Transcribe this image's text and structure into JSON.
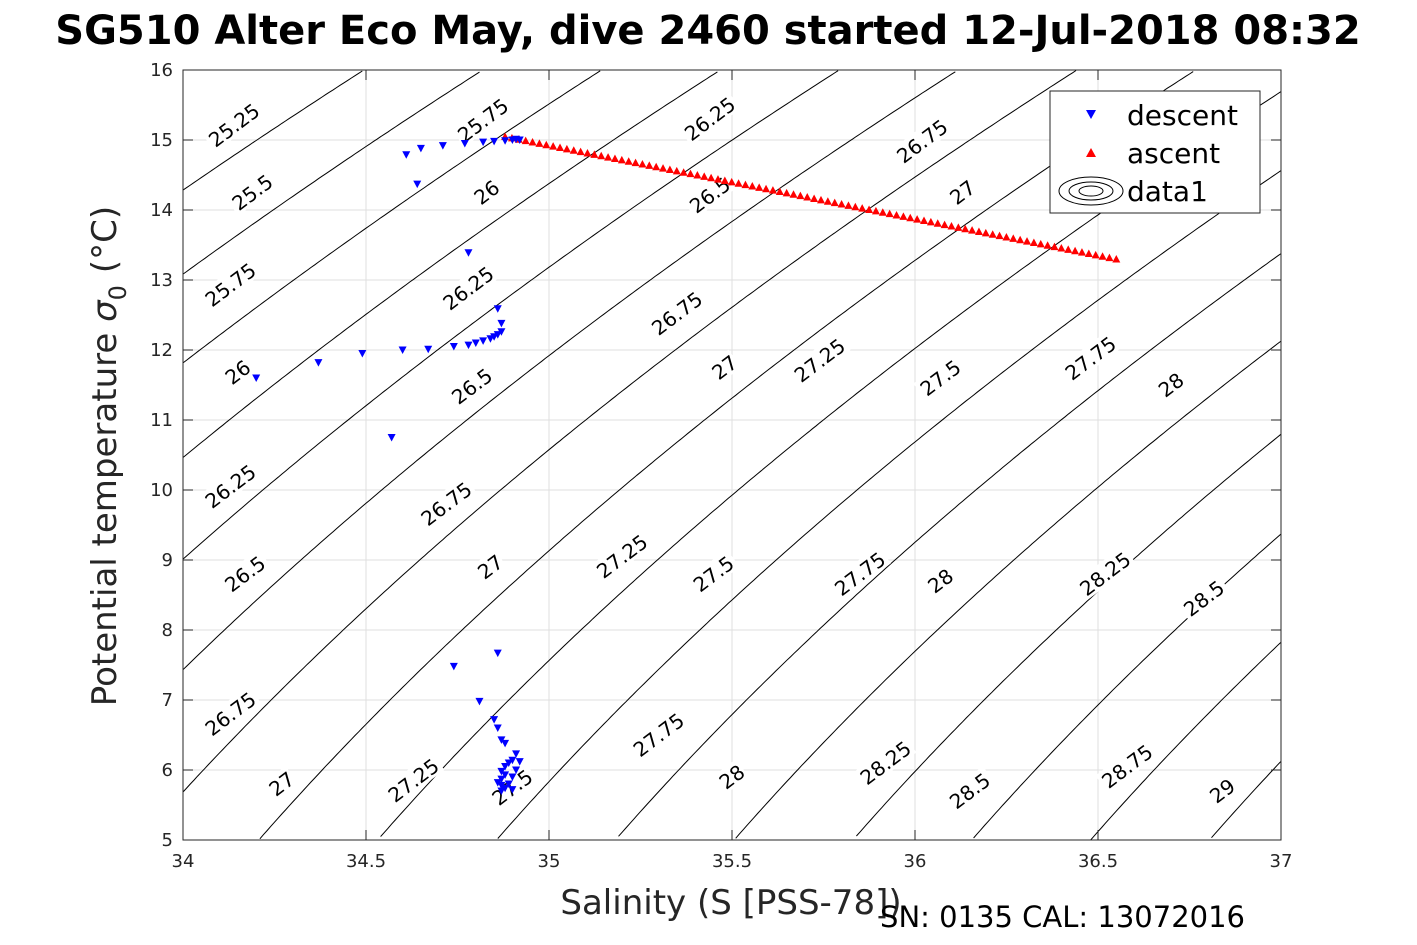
{
  "title": "SG510 Alter Eco May, dive 2460 started 12-Jul-2018 08:32",
  "footer": "SN: 0135  CAL: 13072016",
  "chart_data": {
    "type": "scatter",
    "xlabel": "Salinity (S [PSS-78])",
    "ylabel": "Potential temperature",
    "ylabel_symbol": "σ",
    "ylabel_subscript": "0",
    "ylabel_unit": "(°C)",
    "xlim": [
      34,
      37
    ],
    "ylim": [
      5,
      16
    ],
    "xticks": [
      34,
      34.5,
      35,
      35.5,
      36,
      36.5,
      37
    ],
    "yticks": [
      5,
      6,
      7,
      8,
      9,
      10,
      11,
      12,
      13,
      14,
      15,
      16
    ],
    "grid": true,
    "legend": {
      "placement": "top-right",
      "entries": [
        {
          "label": "descent",
          "color": "#0000ff",
          "marker": "triangle-down"
        },
        {
          "label": "ascent",
          "color": "#ff0000",
          "marker": "triangle-up"
        },
        {
          "label": "data1",
          "color": "#000000",
          "marker": "contour"
        }
      ]
    },
    "series": [
      {
        "name": "descent",
        "color": "#0000ff",
        "marker": "triangle-down",
        "points": [
          [
            34.2,
            11.6
          ],
          [
            34.37,
            11.82
          ],
          [
            34.49,
            11.95
          ],
          [
            34.6,
            12.0
          ],
          [
            34.67,
            12.01
          ],
          [
            34.74,
            12.05
          ],
          [
            34.78,
            12.07
          ],
          [
            34.8,
            12.1
          ],
          [
            34.82,
            12.13
          ],
          [
            34.84,
            12.16
          ],
          [
            34.85,
            12.19
          ],
          [
            34.86,
            12.22
          ],
          [
            34.87,
            12.26
          ],
          [
            34.87,
            12.38
          ],
          [
            34.86,
            12.59
          ],
          [
            34.78,
            13.39
          ],
          [
            34.57,
            10.75
          ],
          [
            34.64,
            14.37
          ],
          [
            34.61,
            14.79
          ],
          [
            34.65,
            14.88
          ],
          [
            34.71,
            14.92
          ],
          [
            34.77,
            14.95
          ],
          [
            34.82,
            14.97
          ],
          [
            34.85,
            14.98
          ],
          [
            34.88,
            14.99
          ],
          [
            34.9,
            15.0
          ],
          [
            34.91,
            15.01
          ],
          [
            34.92,
            15.0
          ],
          [
            34.74,
            7.48
          ],
          [
            34.86,
            7.67
          ],
          [
            34.81,
            6.98
          ],
          [
            34.85,
            6.72
          ],
          [
            34.86,
            6.6
          ],
          [
            34.87,
            6.43
          ],
          [
            34.88,
            6.38
          ],
          [
            34.91,
            6.23
          ],
          [
            34.9,
            6.14
          ],
          [
            34.89,
            6.1
          ],
          [
            34.88,
            6.05
          ],
          [
            34.87,
            5.98
          ],
          [
            34.88,
            5.93
          ],
          [
            34.87,
            5.87
          ],
          [
            34.86,
            5.82
          ],
          [
            34.87,
            5.78
          ],
          [
            34.88,
            5.74
          ],
          [
            34.87,
            5.7
          ],
          [
            34.9,
            5.72
          ],
          [
            34.89,
            5.8
          ],
          [
            34.9,
            5.9
          ],
          [
            34.91,
            6.0
          ],
          [
            34.92,
            6.12
          ]
        ]
      },
      {
        "name": "ascent",
        "color": "#ff0000",
        "marker": "triangle-up",
        "x_range": [
          34.88,
          36.55
        ],
        "y_range": [
          15.05,
          13.3
        ],
        "count": 90
      }
    ],
    "contours": {
      "label_texts": [
        "25.25",
        "25.5",
        "25.75",
        "26",
        "26.25",
        "26.5",
        "26.75",
        "27",
        "27.25",
        "27.5",
        "27.75",
        "28",
        "28.25",
        "28.5",
        "28.75",
        "29"
      ],
      "labels": [
        {
          "text": "25.25",
          "s": 34.14,
          "t": 15.21
        },
        {
          "text": "25.5",
          "s": 34.19,
          "t": 14.25
        },
        {
          "text": "25.75",
          "s": 34.13,
          "t": 12.93
        },
        {
          "text": "26",
          "s": 34.15,
          "t": 11.68
        },
        {
          "text": "26.25",
          "s": 34.13,
          "t": 10.05
        },
        {
          "text": "26.5",
          "s": 34.17,
          "t": 8.8
        },
        {
          "text": "26.75",
          "s": 34.13,
          "t": 6.8
        },
        {
          "text": "27",
          "s": 34.27,
          "t": 5.8
        },
        {
          "text": "27.25",
          "s": 34.63,
          "t": 5.85
        },
        {
          "text": "27.5",
          "s": 34.9,
          "t": 5.75
        },
        {
          "text": "25.75",
          "s": 34.82,
          "t": 15.28
        },
        {
          "text": "26",
          "s": 34.83,
          "t": 14.25
        },
        {
          "text": "26.25",
          "s": 34.78,
          "t": 12.88
        },
        {
          "text": "26.5",
          "s": 34.79,
          "t": 11.48
        },
        {
          "text": "26.75",
          "s": 34.72,
          "t": 9.8
        },
        {
          "text": "27",
          "s": 34.84,
          "t": 8.9
        },
        {
          "text": "27.25",
          "s": 35.2,
          "t": 9.05
        },
        {
          "text": "27.5",
          "s": 35.45,
          "t": 8.8
        },
        {
          "text": "27.75",
          "s": 35.3,
          "t": 6.5
        },
        {
          "text": "28",
          "s": 35.5,
          "t": 5.9
        },
        {
          "text": "26.25",
          "s": 35.44,
          "t": 15.3
        },
        {
          "text": "26.5",
          "s": 35.44,
          "t": 14.21
        },
        {
          "text": "26.75",
          "s": 35.35,
          "t": 12.52
        },
        {
          "text": "27",
          "s": 35.48,
          "t": 11.75
        },
        {
          "text": "27.25",
          "s": 35.74,
          "t": 11.85
        },
        {
          "text": "27.5",
          "s": 36.07,
          "t": 11.6
        },
        {
          "text": "27.75",
          "s": 35.85,
          "t": 8.8
        },
        {
          "text": "28",
          "s": 36.07,
          "t": 8.7
        },
        {
          "text": "28.25",
          "s": 35.92,
          "t": 6.1
        },
        {
          "text": "28.5",
          "s": 36.15,
          "t": 5.7
        },
        {
          "text": "26.75",
          "s": 36.02,
          "t": 14.98
        },
        {
          "text": "27",
          "s": 36.13,
          "t": 14.25
        },
        {
          "text": "27.75",
          "s": 36.48,
          "t": 11.88
        },
        {
          "text": "28",
          "s": 36.7,
          "t": 11.5
        },
        {
          "text": "28.25",
          "s": 36.52,
          "t": 8.8
        },
        {
          "text": "28.5",
          "s": 36.79,
          "t": 8.45
        },
        {
          "text": "28.75",
          "s": 36.58,
          "t": 6.05
        },
        {
          "text": "29",
          "s": 36.84,
          "t": 5.7
        }
      ]
    }
  }
}
